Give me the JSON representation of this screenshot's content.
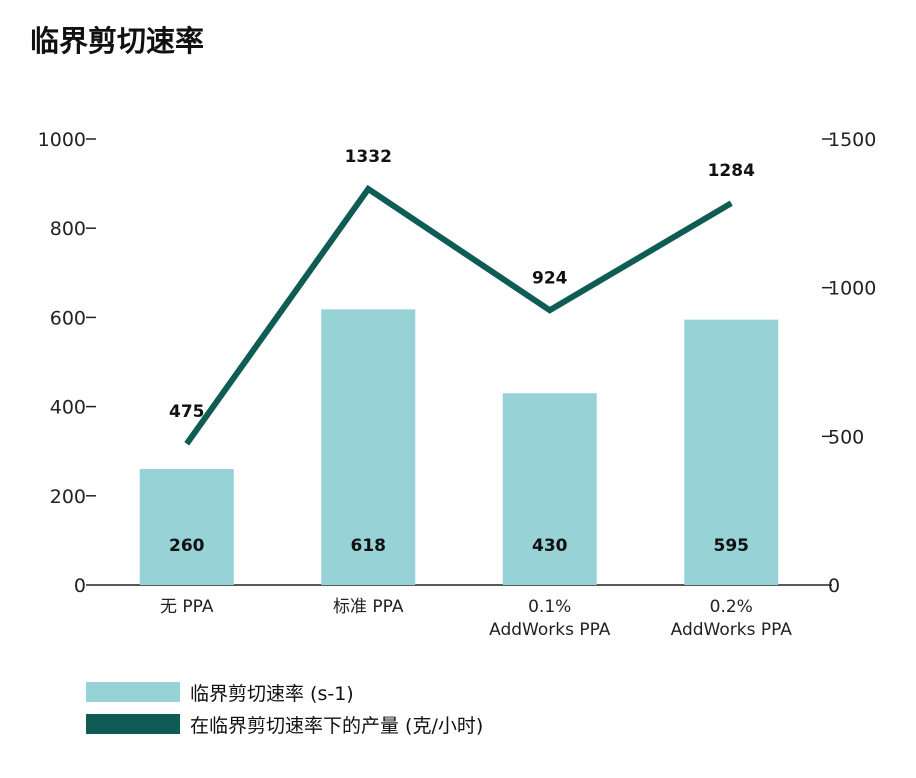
{
  "title": "临界剪切速率",
  "colors": {
    "bar": "#96d2d6",
    "line": "#0f5c55",
    "axis": "#222222"
  },
  "chart_data": {
    "type": "bar",
    "categories": [
      [
        "无 PPA"
      ],
      [
        "标准 PPA"
      ],
      [
        "0.1%",
        "AddWorks PPA"
      ],
      [
        "0.2%",
        "AddWorks PPA"
      ]
    ],
    "y_left": {
      "min": 0,
      "max": 1000,
      "ticks": [
        0,
        200,
        400,
        600,
        800,
        1000
      ]
    },
    "y_right": {
      "min": 0,
      "max": 1500,
      "ticks": [
        0,
        500,
        1000,
        1500
      ]
    },
    "series": [
      {
        "name": "临界剪切速率 (s-1)",
        "type": "bar",
        "axis": "left",
        "values": [
          260,
          618,
          430,
          595
        ]
      },
      {
        "name": "在临界剪切速率下的产量 (克/小时)",
        "type": "line",
        "axis": "right",
        "values": [
          475,
          1332,
          924,
          1284
        ]
      }
    ],
    "legend": "bottom-left",
    "grid": false
  }
}
